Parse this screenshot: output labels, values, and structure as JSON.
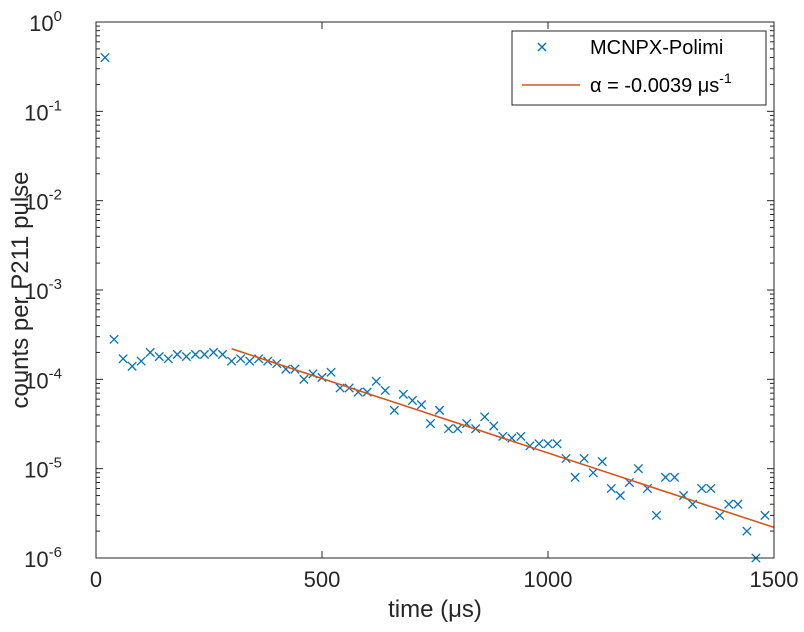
{
  "chart_data": {
    "type": "scatter",
    "xlabel": "time (μs)",
    "ylabel": "counts per P211 pulse",
    "xlim": [
      0,
      1500
    ],
    "ylim": [
      1e-06,
      1
    ],
    "yscale": "log",
    "grid": false,
    "legend_position": "top-right",
    "x_ticks": [
      0,
      500,
      1000,
      1500
    ],
    "y_ticks": [
      {
        "value": 1e-06,
        "base": "10",
        "exp": "-6"
      },
      {
        "value": 1e-05,
        "base": "10",
        "exp": "-5"
      },
      {
        "value": 0.0001,
        "base": "10",
        "exp": "-4"
      },
      {
        "value": 0.001,
        "base": "10",
        "exp": "-3"
      },
      {
        "value": 0.01,
        "base": "10",
        "exp": "-2"
      },
      {
        "value": 0.1,
        "base": "10",
        "exp": "-1"
      },
      {
        "value": 1,
        "base": "10",
        "exp": "0"
      }
    ],
    "series": [
      {
        "name": "MCNPX-Polimi",
        "kind": "scatter",
        "marker": "x",
        "color": "#0072BD",
        "x": [
          20,
          40,
          60,
          80,
          100,
          120,
          140,
          160,
          180,
          200,
          220,
          240,
          260,
          280,
          300,
          320,
          340,
          360,
          380,
          400,
          420,
          440,
          460,
          480,
          500,
          520,
          540,
          560,
          580,
          600,
          620,
          640,
          660,
          680,
          700,
          720,
          740,
          760,
          780,
          800,
          820,
          840,
          860,
          880,
          900,
          920,
          940,
          960,
          980,
          1000,
          1020,
          1040,
          1060,
          1080,
          1100,
          1120,
          1140,
          1160,
          1180,
          1200,
          1220,
          1240,
          1260,
          1280,
          1300,
          1320,
          1340,
          1360,
          1380,
          1400,
          1420,
          1440,
          1460,
          1480
        ],
        "y": [
          0.4,
          0.00028,
          0.00017,
          0.00014,
          0.00016,
          0.0002,
          0.00018,
          0.00017,
          0.00019,
          0.00018,
          0.00019,
          0.00019,
          0.0002,
          0.00019,
          0.00016,
          0.00017,
          0.00016,
          0.00017,
          0.00016,
          0.00015,
          0.00013,
          0.00013,
          0.0001,
          0.000115,
          0.000105,
          0.00012,
          8e-05,
          8e-05,
          7.2e-05,
          7.2e-05,
          9.5e-05,
          7.5e-05,
          4.5e-05,
          6.8e-05,
          5.8e-05,
          5.2e-05,
          3.2e-05,
          4.5e-05,
          2.8e-05,
          2.8e-05,
          3.2e-05,
          2.8e-05,
          3.8e-05,
          3e-05,
          2.3e-05,
          2.2e-05,
          2.3e-05,
          1.8e-05,
          1.9e-05,
          1.9e-05,
          1.9e-05,
          1.3e-05,
          8e-06,
          1.3e-05,
          9e-06,
          1.2e-05,
          6e-06,
          5e-06,
          7e-06,
          1e-05,
          6e-06,
          3e-06,
          8e-06,
          8e-06,
          5e-06,
          4e-06,
          6e-06,
          6e-06,
          3e-06,
          4e-06,
          4e-06,
          2e-06,
          1e-06,
          3e-06
        ]
      },
      {
        "name": "α = -0.0039 μs⁻¹",
        "kind": "line",
        "color": "#D95319",
        "x": [
          300,
          1500
        ],
        "y": [
          0.00022,
          2.2e-06
        ]
      }
    ],
    "legend": [
      {
        "label": "MCNPX-Polimi",
        "symbol": "x"
      },
      {
        "label": "α = -0.0039 μs",
        "superscript": "-1",
        "symbol": "line"
      }
    ]
  }
}
